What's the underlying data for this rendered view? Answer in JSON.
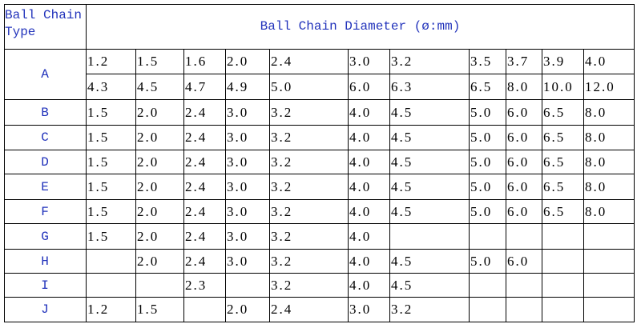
{
  "header": {
    "type_label": "Ball Chain Type",
    "diameter_label": "Ball Chain Diameter (ø:mm)"
  },
  "rows": [
    {
      "type": "A",
      "cells": [
        [
          "1.2",
          "1.5",
          "1.6",
          "2.0",
          "2.4",
          "3.0",
          "3.2",
          "3.5",
          "3.7",
          "3.9",
          "4.0"
        ],
        [
          "4.3",
          "4.5",
          "4.7",
          "4.9",
          "5.0",
          "6.0",
          "6.3",
          "6.5",
          "8.0",
          "10.0",
          "12.0"
        ]
      ]
    },
    {
      "type": "B",
      "cells": [
        [
          "1.5",
          "2.0",
          "2.4",
          "3.0",
          "3.2",
          "4.0",
          "4.5",
          "5.0",
          "6.0",
          "6.5",
          "8.0"
        ]
      ]
    },
    {
      "type": "C",
      "cells": [
        [
          "1.5",
          "2.0",
          "2.4",
          "3.0",
          "3.2",
          "4.0",
          "4.5",
          "5.0",
          "6.0",
          "6.5",
          "8.0"
        ]
      ]
    },
    {
      "type": "D",
      "cells": [
        [
          "1.5",
          "2.0",
          "2.4",
          "3.0",
          "3.2",
          "4.0",
          "4.5",
          "5.0",
          "6.0",
          "6.5",
          "8.0"
        ]
      ]
    },
    {
      "type": "E",
      "cells": [
        [
          "1.5",
          "2.0",
          "2.4",
          "3.0",
          "3.2",
          "4.0",
          "4.5",
          "5.0",
          "6.0",
          "6.5",
          "8.0"
        ]
      ]
    },
    {
      "type": "F",
      "cells": [
        [
          "1.5",
          "2.0",
          "2.4",
          "3.0",
          "3.2",
          "4.0",
          "4.5",
          "5.0",
          "6.0",
          "6.5",
          "8.0"
        ]
      ]
    },
    {
      "type": "G",
      "cells": [
        [
          "1.5",
          "2.0",
          "2.4",
          "3.0",
          "3.2",
          "4.0",
          null,
          null,
          null,
          null,
          null
        ]
      ]
    },
    {
      "type": "H",
      "cells": [
        [
          null,
          "2.0",
          "2.4",
          "3.0",
          "3.2",
          "4.0",
          "4.5",
          "5.0",
          "6.0",
          null,
          null
        ]
      ]
    },
    {
      "type": "I",
      "cells": [
        [
          null,
          null,
          "2.3",
          null,
          "3.2",
          "4.0",
          "4.5",
          null,
          null,
          null,
          null
        ]
      ]
    },
    {
      "type": "J",
      "cells": [
        [
          "1.2",
          "1.5",
          null,
          "2.0",
          "2.4",
          "3.0",
          "3.2",
          null,
          null,
          null,
          null
        ]
      ]
    }
  ]
}
